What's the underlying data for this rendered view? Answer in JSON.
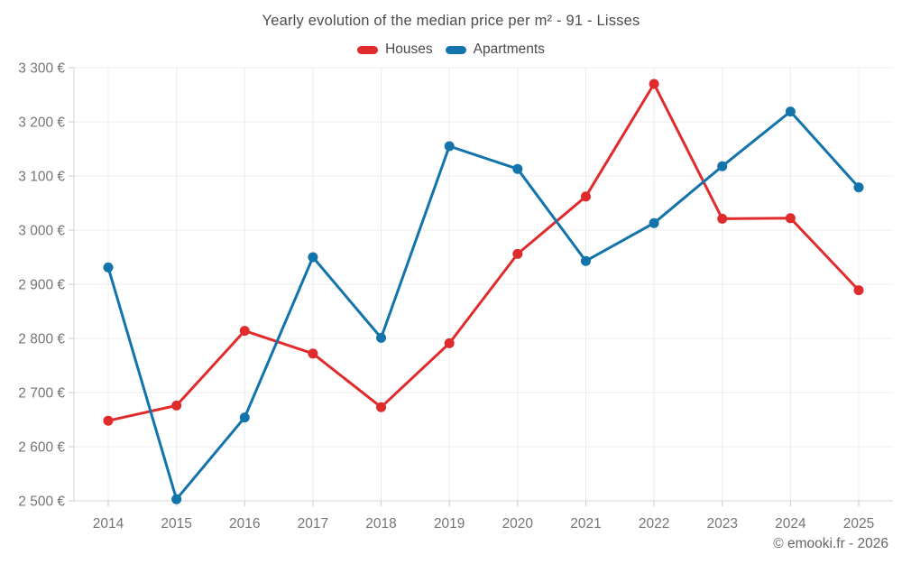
{
  "chart_data": {
    "type": "line",
    "title": "Yearly evolution of the median price per m² - 91 - Lisses",
    "xlabel": "",
    "ylabel": "",
    "categories": [
      "2014",
      "2015",
      "2016",
      "2017",
      "2018",
      "2019",
      "2020",
      "2021",
      "2022",
      "2023",
      "2024",
      "2025"
    ],
    "series": [
      {
        "name": "Houses",
        "color": "#e02b2d",
        "values": [
          2648,
          2676,
          2814,
          2772,
          2673,
          2791,
          2956,
          3062,
          3270,
          3021,
          3022,
          2889
        ]
      },
      {
        "name": "Apartments",
        "color": "#1274ab",
        "values": [
          2931,
          2503,
          2654,
          2950,
          2801,
          3155,
          3113,
          2943,
          3013,
          3118,
          3219,
          3079
        ]
      }
    ],
    "ylim": [
      2500,
      3300
    ],
    "ytick_step": 100,
    "yticks": [
      {
        "value": 2500,
        "label": "2 500 €"
      },
      {
        "value": 2600,
        "label": "2 600 €"
      },
      {
        "value": 2700,
        "label": "2 700 €"
      },
      {
        "value": 2800,
        "label": "2 800 €"
      },
      {
        "value": 2900,
        "label": "2 900 €"
      },
      {
        "value": 3000,
        "label": "3 000 €"
      },
      {
        "value": 3100,
        "label": "3 100 €"
      },
      {
        "value": 3200,
        "label": "3 200 €"
      },
      {
        "value": 3300,
        "label": "3 300 €"
      }
    ],
    "grid": true,
    "legend_position": "top"
  },
  "colors": {
    "grid": "#ececec",
    "axis": "#d6d6d6",
    "tick": "#c9c9c9",
    "title_text": "#4d4d4d",
    "axis_text": "#757575",
    "footer_text": "#666666",
    "background": "#ffffff"
  },
  "footer": {
    "text": "© emooki.fr - 2026"
  }
}
